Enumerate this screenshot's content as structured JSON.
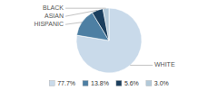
{
  "chart_data": {
    "type": "pie",
    "categories": [
      "WHITE",
      "HISPANIC",
      "ASIAN",
      "BLACK"
    ],
    "values": [
      77.7,
      13.8,
      5.6,
      3.0
    ],
    "value_labels": [
      "77.7%",
      "13.8%",
      "5.6%",
      "3.0%"
    ],
    "colors": [
      "#c9daea",
      "#4d7fa3",
      "#1b3f5e",
      "#b2c9d9"
    ],
    "legend": "bottom"
  }
}
